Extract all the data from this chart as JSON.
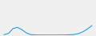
{
  "x": [
    0,
    1,
    2,
    3,
    4,
    5,
    6,
    7,
    8,
    9,
    10,
    11,
    12,
    13,
    14,
    15,
    16,
    17,
    18,
    19,
    20
  ],
  "y": [
    5,
    20,
    75,
    90,
    65,
    28,
    6,
    2,
    1,
    1,
    1,
    1,
    1,
    1,
    2,
    4,
    8,
    18,
    40,
    72,
    110
  ],
  "line_color": "#2a9fd4",
  "linewidth": 0.8,
  "background_color": "#f0f0f0",
  "ylim_min": -2,
  "ylim_max": 400,
  "xlim_min": -0.5,
  "xlim_max": 20.5
}
